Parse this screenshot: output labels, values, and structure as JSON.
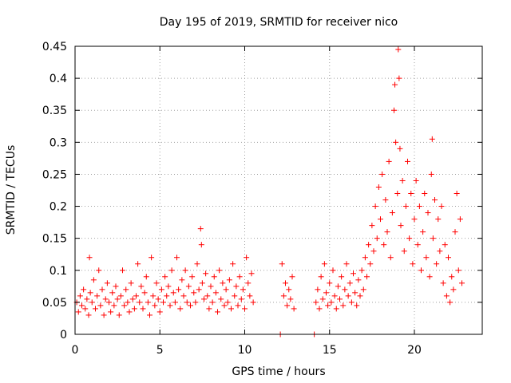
{
  "chart_data": {
    "type": "scatter",
    "title": "Day 195 of 2019, SRMTID for receiver nico",
    "xlabel": "GPS time / hours",
    "ylabel": "SRMTID / TECUs",
    "xlim": [
      0,
      24
    ],
    "ylim": [
      0,
      0.45
    ],
    "xticks": [
      0,
      5,
      10,
      15,
      20
    ],
    "xtick_labels": [
      "0",
      "5",
      "10",
      "15",
      "20"
    ],
    "yticks": [
      0,
      0.05,
      0.1,
      0.15,
      0.2,
      0.25,
      0.3,
      0.35,
      0.4,
      0.45
    ],
    "ytick_labels": [
      "0",
      "0.05",
      "0.1",
      "0.15",
      "0.2",
      "0.25",
      "0.3",
      "0.35",
      "0.4",
      "0.45"
    ],
    "grid": true,
    "marker": "+",
    "color": "#ff0000",
    "series": [
      {
        "name": "SRMTID",
        "points": [
          [
            0.1,
            0.05
          ],
          [
            0.2,
            0.035
          ],
          [
            0.3,
            0.06
          ],
          [
            0.4,
            0.045
          ],
          [
            0.5,
            0.07
          ],
          [
            0.6,
            0.04
          ],
          [
            0.7,
            0.055
          ],
          [
            0.8,
            0.03
          ],
          [
            0.85,
            0.12
          ],
          [
            0.9,
            0.065
          ],
          [
            1.0,
            0.05
          ],
          [
            1.1,
            0.085
          ],
          [
            1.2,
            0.04
          ],
          [
            1.3,
            0.06
          ],
          [
            1.4,
            0.1
          ],
          [
            1.5,
            0.045
          ],
          [
            1.6,
            0.07
          ],
          [
            1.7,
            0.03
          ],
          [
            1.8,
            0.055
          ],
          [
            1.9,
            0.08
          ],
          [
            2.0,
            0.05
          ],
          [
            2.1,
            0.035
          ],
          [
            2.2,
            0.065
          ],
          [
            2.3,
            0.045
          ],
          [
            2.4,
            0.075
          ],
          [
            2.5,
            0.055
          ],
          [
            2.6,
            0.03
          ],
          [
            2.7,
            0.06
          ],
          [
            2.8,
            0.1
          ],
          [
            2.9,
            0.045
          ],
          [
            3.0,
            0.07
          ],
          [
            3.1,
            0.05
          ],
          [
            3.2,
            0.035
          ],
          [
            3.3,
            0.08
          ],
          [
            3.4,
            0.055
          ],
          [
            3.5,
            0.04
          ],
          [
            3.6,
            0.06
          ],
          [
            3.7,
            0.11
          ],
          [
            3.8,
            0.05
          ],
          [
            3.9,
            0.075
          ],
          [
            4.0,
            0.04
          ],
          [
            4.1,
            0.065
          ],
          [
            4.2,
            0.09
          ],
          [
            4.3,
            0.05
          ],
          [
            4.4,
            0.03
          ],
          [
            4.5,
            0.12
          ],
          [
            4.6,
            0.06
          ],
          [
            4.7,
            0.045
          ],
          [
            4.8,
            0.08
          ],
          [
            4.9,
            0.055
          ],
          [
            5.0,
            0.035
          ],
          [
            5.1,
            0.07
          ],
          [
            5.2,
            0.05
          ],
          [
            5.3,
            0.09
          ],
          [
            5.4,
            0.06
          ],
          [
            5.5,
            0.075
          ],
          [
            5.6,
            0.045
          ],
          [
            5.7,
            0.1
          ],
          [
            5.8,
            0.065
          ],
          [
            5.9,
            0.05
          ],
          [
            6.0,
            0.12
          ],
          [
            6.1,
            0.07
          ],
          [
            6.2,
            0.04
          ],
          [
            6.3,
            0.085
          ],
          [
            6.4,
            0.06
          ],
          [
            6.5,
            0.1
          ],
          [
            6.6,
            0.05
          ],
          [
            6.7,
            0.075
          ],
          [
            6.8,
            0.045
          ],
          [
            6.9,
            0.09
          ],
          [
            7.0,
            0.065
          ],
          [
            7.1,
            0.05
          ],
          [
            7.2,
            0.11
          ],
          [
            7.3,
            0.07
          ],
          [
            7.4,
            0.165
          ],
          [
            7.45,
            0.14
          ],
          [
            7.5,
            0.08
          ],
          [
            7.6,
            0.055
          ],
          [
            7.7,
            0.095
          ],
          [
            7.8,
            0.06
          ],
          [
            7.9,
            0.04
          ],
          [
            8.0,
            0.075
          ],
          [
            8.1,
            0.05
          ],
          [
            8.2,
            0.09
          ],
          [
            8.3,
            0.065
          ],
          [
            8.4,
            0.035
          ],
          [
            8.5,
            0.1
          ],
          [
            8.6,
            0.055
          ],
          [
            8.7,
            0.08
          ],
          [
            8.8,
            0.045
          ],
          [
            8.9,
            0.07
          ],
          [
            9.0,
            0.05
          ],
          [
            9.1,
            0.085
          ],
          [
            9.2,
            0.04
          ],
          [
            9.3,
            0.11
          ],
          [
            9.4,
            0.06
          ],
          [
            9.5,
            0.075
          ],
          [
            9.6,
            0.045
          ],
          [
            9.7,
            0.09
          ],
          [
            9.8,
            0.055
          ],
          [
            9.9,
            0.07
          ],
          [
            10.0,
            0.04
          ],
          [
            10.1,
            0.12
          ],
          [
            10.2,
            0.08
          ],
          [
            10.3,
            0.06
          ],
          [
            10.4,
            0.095
          ],
          [
            10.5,
            0.05
          ],
          [
            12.1,
            0.0
          ],
          [
            12.2,
            0.11
          ],
          [
            12.3,
            0.06
          ],
          [
            12.4,
            0.08
          ],
          [
            12.5,
            0.045
          ],
          [
            12.6,
            0.07
          ],
          [
            12.7,
            0.055
          ],
          [
            12.8,
            0.09
          ],
          [
            12.9,
            0.04
          ],
          [
            14.1,
            0.0
          ],
          [
            14.2,
            0.05
          ],
          [
            14.3,
            0.07
          ],
          [
            14.4,
            0.04
          ],
          [
            14.5,
            0.09
          ],
          [
            14.6,
            0.055
          ],
          [
            14.7,
            0.11
          ],
          [
            14.8,
            0.065
          ],
          [
            14.9,
            0.045
          ],
          [
            15.0,
            0.08
          ],
          [
            15.1,
            0.05
          ],
          [
            15.2,
            0.1
          ],
          [
            15.3,
            0.06
          ],
          [
            15.4,
            0.04
          ],
          [
            15.5,
            0.075
          ],
          [
            15.6,
            0.055
          ],
          [
            15.7,
            0.09
          ],
          [
            15.8,
            0.045
          ],
          [
            15.9,
            0.07
          ],
          [
            16.0,
            0.11
          ],
          [
            16.1,
            0.06
          ],
          [
            16.2,
            0.08
          ],
          [
            16.3,
            0.05
          ],
          [
            16.4,
            0.095
          ],
          [
            16.5,
            0.065
          ],
          [
            16.6,
            0.045
          ],
          [
            16.7,
            0.085
          ],
          [
            16.8,
            0.06
          ],
          [
            16.9,
            0.1
          ],
          [
            17.0,
            0.07
          ],
          [
            17.1,
            0.12
          ],
          [
            17.2,
            0.09
          ],
          [
            17.3,
            0.14
          ],
          [
            17.4,
            0.11
          ],
          [
            17.5,
            0.17
          ],
          [
            17.6,
            0.13
          ],
          [
            17.7,
            0.2
          ],
          [
            17.8,
            0.15
          ],
          [
            17.9,
            0.23
          ],
          [
            18.0,
            0.18
          ],
          [
            18.1,
            0.25
          ],
          [
            18.2,
            0.14
          ],
          [
            18.3,
            0.21
          ],
          [
            18.4,
            0.16
          ],
          [
            18.5,
            0.27
          ],
          [
            18.6,
            0.12
          ],
          [
            18.7,
            0.19
          ],
          [
            18.8,
            0.35
          ],
          [
            18.85,
            0.39
          ],
          [
            18.9,
            0.3
          ],
          [
            19.0,
            0.22
          ],
          [
            19.05,
            0.445
          ],
          [
            19.1,
            0.4
          ],
          [
            19.15,
            0.29
          ],
          [
            19.2,
            0.17
          ],
          [
            19.3,
            0.24
          ],
          [
            19.4,
            0.13
          ],
          [
            19.5,
            0.2
          ],
          [
            19.6,
            0.27
          ],
          [
            19.7,
            0.15
          ],
          [
            19.8,
            0.22
          ],
          [
            19.9,
            0.11
          ],
          [
            20.0,
            0.18
          ],
          [
            20.1,
            0.24
          ],
          [
            20.2,
            0.14
          ],
          [
            20.3,
            0.2
          ],
          [
            20.4,
            0.1
          ],
          [
            20.5,
            0.16
          ],
          [
            20.6,
            0.22
          ],
          [
            20.7,
            0.12
          ],
          [
            20.8,
            0.19
          ],
          [
            20.9,
            0.09
          ],
          [
            21.0,
            0.25
          ],
          [
            21.05,
            0.305
          ],
          [
            21.1,
            0.15
          ],
          [
            21.2,
            0.21
          ],
          [
            21.3,
            0.11
          ],
          [
            21.4,
            0.18
          ],
          [
            21.5,
            0.13
          ],
          [
            21.6,
            0.2
          ],
          [
            21.7,
            0.08
          ],
          [
            21.8,
            0.14
          ],
          [
            21.9,
            0.06
          ],
          [
            22.0,
            0.12
          ],
          [
            22.1,
            0.05
          ],
          [
            22.2,
            0.09
          ],
          [
            22.3,
            0.07
          ],
          [
            22.4,
            0.16
          ],
          [
            22.5,
            0.22
          ],
          [
            22.6,
            0.1
          ],
          [
            22.7,
            0.18
          ],
          [
            22.8,
            0.08
          ]
        ]
      }
    ]
  }
}
